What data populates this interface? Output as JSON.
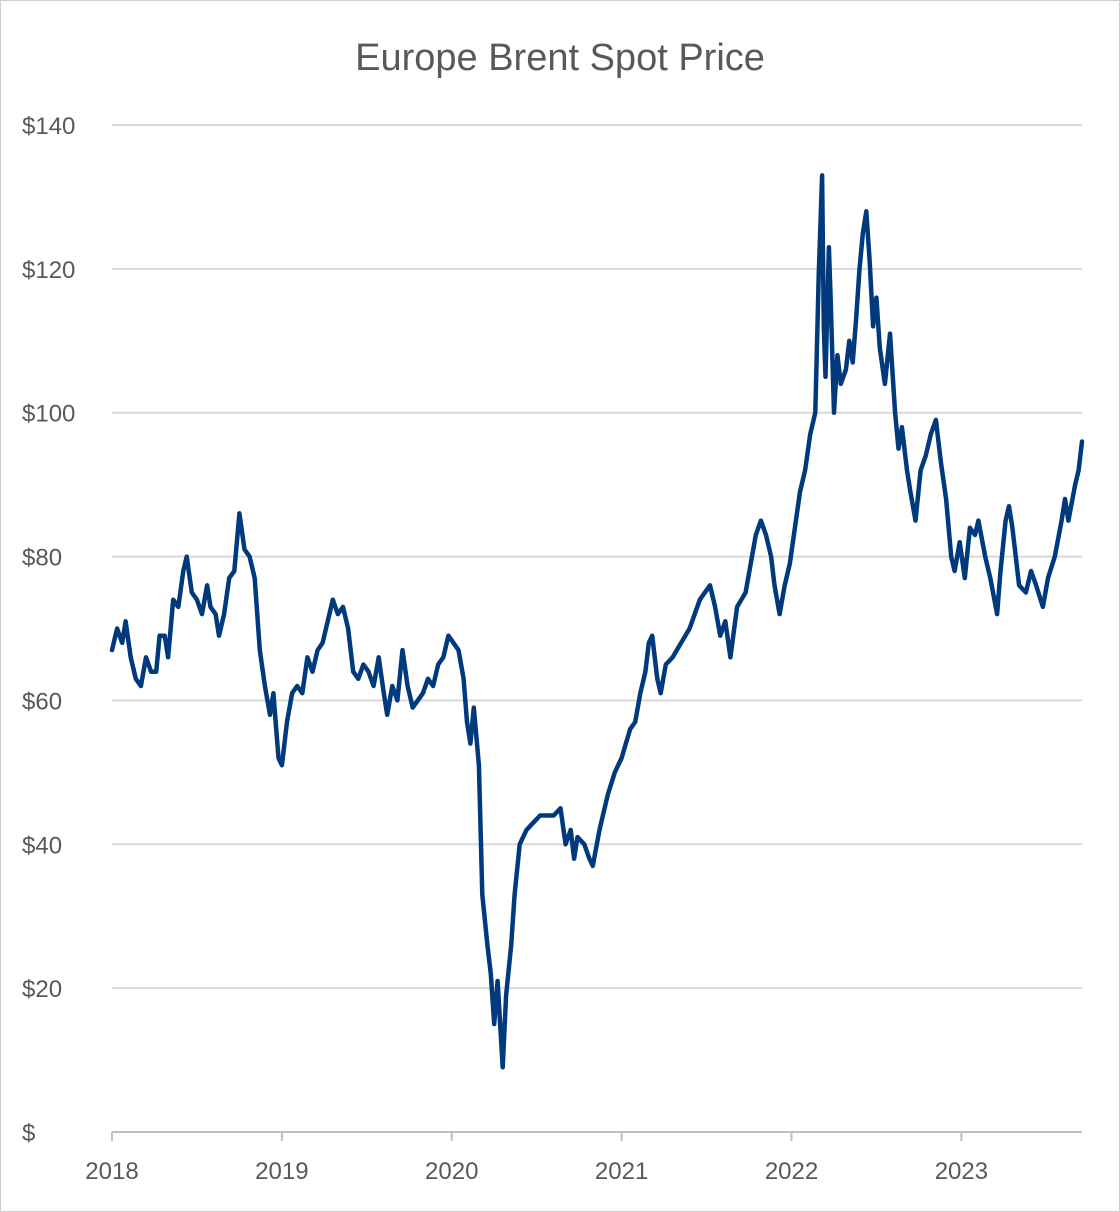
{
  "chart_data": {
    "type": "line",
    "title": "Europe Brent Spot Price",
    "xlabel": "",
    "ylabel": "",
    "xlim": [
      2018,
      2023.71
    ],
    "ylim": [
      0,
      140
    ],
    "grid": true,
    "legend": "none",
    "x_ticks": [
      2018,
      2019,
      2020,
      2021,
      2022,
      2023
    ],
    "x_tick_labels": [
      "2018",
      "2019",
      "2020",
      "2021",
      "2022",
      "2023"
    ],
    "y_ticks": [
      0,
      20,
      40,
      60,
      80,
      100,
      120,
      140
    ],
    "y_tick_labels": [
      "$",
      "$20",
      "$40",
      "$60",
      "$80",
      "$100",
      "$120",
      "$140"
    ],
    "line_color": "#003A7D",
    "series": [
      {
        "name": "Brent Spot Price",
        "points": [
          [
            2018.0,
            67
          ],
          [
            2018.03,
            70
          ],
          [
            2018.06,
            68
          ],
          [
            2018.08,
            71
          ],
          [
            2018.11,
            66
          ],
          [
            2018.14,
            63
          ],
          [
            2018.17,
            62
          ],
          [
            2018.2,
            66
          ],
          [
            2018.23,
            64
          ],
          [
            2018.26,
            64
          ],
          [
            2018.28,
            69
          ],
          [
            2018.31,
            69
          ],
          [
            2018.33,
            66
          ],
          [
            2018.36,
            74
          ],
          [
            2018.39,
            73
          ],
          [
            2018.42,
            78
          ],
          [
            2018.44,
            80
          ],
          [
            2018.47,
            75
          ],
          [
            2018.5,
            74
          ],
          [
            2018.53,
            72
          ],
          [
            2018.56,
            76
          ],
          [
            2018.58,
            73
          ],
          [
            2018.61,
            72
          ],
          [
            2018.63,
            69
          ],
          [
            2018.66,
            72
          ],
          [
            2018.69,
            77
          ],
          [
            2018.72,
            78
          ],
          [
            2018.75,
            86
          ],
          [
            2018.78,
            81
          ],
          [
            2018.81,
            80
          ],
          [
            2018.84,
            77
          ],
          [
            2018.87,
            67
          ],
          [
            2018.9,
            62
          ],
          [
            2018.93,
            58
          ],
          [
            2018.95,
            61
          ],
          [
            2018.98,
            52
          ],
          [
            2019.0,
            51
          ],
          [
            2019.03,
            57
          ],
          [
            2019.06,
            61
          ],
          [
            2019.09,
            62
          ],
          [
            2019.12,
            61
          ],
          [
            2019.15,
            66
          ],
          [
            2019.18,
            64
          ],
          [
            2019.21,
            67
          ],
          [
            2019.24,
            68
          ],
          [
            2019.27,
            71
          ],
          [
            2019.3,
            74
          ],
          [
            2019.33,
            72
          ],
          [
            2019.36,
            73
          ],
          [
            2019.39,
            70
          ],
          [
            2019.42,
            64
          ],
          [
            2019.45,
            63
          ],
          [
            2019.48,
            65
          ],
          [
            2019.51,
            64
          ],
          [
            2019.54,
            62
          ],
          [
            2019.57,
            66
          ],
          [
            2019.6,
            61
          ],
          [
            2019.62,
            58
          ],
          [
            2019.65,
            62
          ],
          [
            2019.68,
            60
          ],
          [
            2019.71,
            67
          ],
          [
            2019.74,
            62
          ],
          [
            2019.77,
            59
          ],
          [
            2019.8,
            60
          ],
          [
            2019.83,
            61
          ],
          [
            2019.86,
            63
          ],
          [
            2019.89,
            62
          ],
          [
            2019.92,
            65
          ],
          [
            2019.95,
            66
          ],
          [
            2019.98,
            69
          ],
          [
            2020.01,
            68
          ],
          [
            2020.04,
            67
          ],
          [
            2020.07,
            63
          ],
          [
            2020.09,
            57
          ],
          [
            2020.11,
            54
          ],
          [
            2020.13,
            59
          ],
          [
            2020.16,
            51
          ],
          [
            2020.18,
            33
          ],
          [
            2020.21,
            26
          ],
          [
            2020.23,
            22
          ],
          [
            2020.25,
            15
          ],
          [
            2020.27,
            21
          ],
          [
            2020.3,
            9
          ],
          [
            2020.32,
            19
          ],
          [
            2020.35,
            26
          ],
          [
            2020.37,
            33
          ],
          [
            2020.4,
            40
          ],
          [
            2020.44,
            42
          ],
          [
            2020.48,
            43
          ],
          [
            2020.52,
            44
          ],
          [
            2020.56,
            44
          ],
          [
            2020.6,
            44
          ],
          [
            2020.64,
            45
          ],
          [
            2020.67,
            40
          ],
          [
            2020.7,
            42
          ],
          [
            2020.72,
            38
          ],
          [
            2020.74,
            41
          ],
          [
            2020.78,
            40
          ],
          [
            2020.81,
            38
          ],
          [
            2020.83,
            37
          ],
          [
            2020.87,
            42
          ],
          [
            2020.92,
            47
          ],
          [
            2020.96,
            50
          ],
          [
            2021.0,
            52
          ],
          [
            2021.05,
            56
          ],
          [
            2021.08,
            57
          ],
          [
            2021.11,
            61
          ],
          [
            2021.14,
            64
          ],
          [
            2021.16,
            68
          ],
          [
            2021.18,
            69
          ],
          [
            2021.21,
            63
          ],
          [
            2021.23,
            61
          ],
          [
            2021.26,
            65
          ],
          [
            2021.3,
            66
          ],
          [
            2021.35,
            68
          ],
          [
            2021.4,
            70
          ],
          [
            2021.46,
            74
          ],
          [
            2021.52,
            76
          ],
          [
            2021.55,
            73
          ],
          [
            2021.58,
            69
          ],
          [
            2021.61,
            71
          ],
          [
            2021.64,
            66
          ],
          [
            2021.68,
            73
          ],
          [
            2021.73,
            75
          ],
          [
            2021.76,
            79
          ],
          [
            2021.79,
            83
          ],
          [
            2021.82,
            85
          ],
          [
            2021.85,
            83
          ],
          [
            2021.88,
            80
          ],
          [
            2021.9,
            76
          ],
          [
            2021.93,
            72
          ],
          [
            2021.96,
            76
          ],
          [
            2021.99,
            79
          ],
          [
            2022.02,
            84
          ],
          [
            2022.05,
            89
          ],
          [
            2022.08,
            92
          ],
          [
            2022.11,
            97
          ],
          [
            2022.14,
            100
          ],
          [
            2022.16,
            119
          ],
          [
            2022.18,
            133
          ],
          [
            2022.19,
            112
          ],
          [
            2022.2,
            105
          ],
          [
            2022.22,
            123
          ],
          [
            2022.23,
            116
          ],
          [
            2022.25,
            100
          ],
          [
            2022.27,
            108
          ],
          [
            2022.29,
            104
          ],
          [
            2022.32,
            106
          ],
          [
            2022.34,
            110
          ],
          [
            2022.36,
            107
          ],
          [
            2022.38,
            113
          ],
          [
            2022.4,
            120
          ],
          [
            2022.42,
            125
          ],
          [
            2022.44,
            128
          ],
          [
            2022.46,
            121
          ],
          [
            2022.48,
            112
          ],
          [
            2022.5,
            116
          ],
          [
            2022.52,
            109
          ],
          [
            2022.55,
            104
          ],
          [
            2022.58,
            111
          ],
          [
            2022.61,
            100
          ],
          [
            2022.63,
            95
          ],
          [
            2022.65,
            98
          ],
          [
            2022.68,
            92
          ],
          [
            2022.7,
            89
          ],
          [
            2022.73,
            85
          ],
          [
            2022.76,
            92
          ],
          [
            2022.79,
            94
          ],
          [
            2022.82,
            97
          ],
          [
            2022.85,
            99
          ],
          [
            2022.88,
            93
          ],
          [
            2022.91,
            88
          ],
          [
            2022.94,
            80
          ],
          [
            2022.96,
            78
          ],
          [
            2022.99,
            82
          ],
          [
            2023.02,
            77
          ],
          [
            2023.05,
            84
          ],
          [
            2023.08,
            83
          ],
          [
            2023.1,
            85
          ],
          [
            2023.14,
            80
          ],
          [
            2023.17,
            77
          ],
          [
            2023.21,
            72
          ],
          [
            2023.23,
            78
          ],
          [
            2023.26,
            85
          ],
          [
            2023.28,
            87
          ],
          [
            2023.3,
            84
          ],
          [
            2023.34,
            76
          ],
          [
            2023.38,
            75
          ],
          [
            2023.41,
            78
          ],
          [
            2023.44,
            76
          ],
          [
            2023.48,
            73
          ],
          [
            2023.51,
            77
          ],
          [
            2023.55,
            80
          ],
          [
            2023.59,
            85
          ],
          [
            2023.61,
            88
          ],
          [
            2023.63,
            85
          ],
          [
            2023.67,
            90
          ],
          [
            2023.69,
            92
          ],
          [
            2023.71,
            96
          ]
        ]
      }
    ]
  }
}
